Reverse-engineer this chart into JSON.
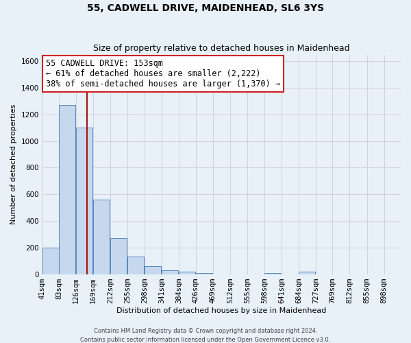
{
  "title": "55, CADWELL DRIVE, MAIDENHEAD, SL6 3YS",
  "subtitle": "Size of property relative to detached houses in Maidenhead",
  "xlabel": "Distribution of detached houses by size in Maidenhead",
  "ylabel": "Number of detached properties",
  "footer1": "Contains HM Land Registry data © Crown copyright and database right 2024.",
  "footer2": "Contains public sector information licensed under the Open Government Licence v3.0.",
  "bins": [
    41,
    83,
    126,
    169,
    212,
    255,
    298,
    341,
    384,
    426,
    469,
    512,
    555,
    598,
    641,
    684,
    727,
    769,
    812,
    855,
    898
  ],
  "values": [
    200,
    1270,
    1100,
    560,
    270,
    130,
    60,
    30,
    20,
    10,
    0,
    0,
    0,
    10,
    0,
    20,
    0,
    0,
    0,
    0
  ],
  "bar_color": "#c5d8ee",
  "bar_edge_color": "#5588bb",
  "property_size": 153,
  "property_label": "55 CADWELL DRIVE: 153sqm",
  "annotation_line1": "← 61% of detached houses are smaller (2,222)",
  "annotation_line2": "38% of semi-detached houses are larger (1,370) →",
  "annotation_box_color": "#ffffff",
  "annotation_box_edge": "#cc2222",
  "vline_color": "#aa1111",
  "ylim": [
    0,
    1650
  ],
  "background_color": "#e8f0f8",
  "grid_color": "#ccccdd",
  "title_fontsize": 10,
  "subtitle_fontsize": 9,
  "axis_label_fontsize": 8,
  "tick_fontsize": 7.5,
  "annotation_fontsize": 8.5,
  "footer_fontsize": 6
}
